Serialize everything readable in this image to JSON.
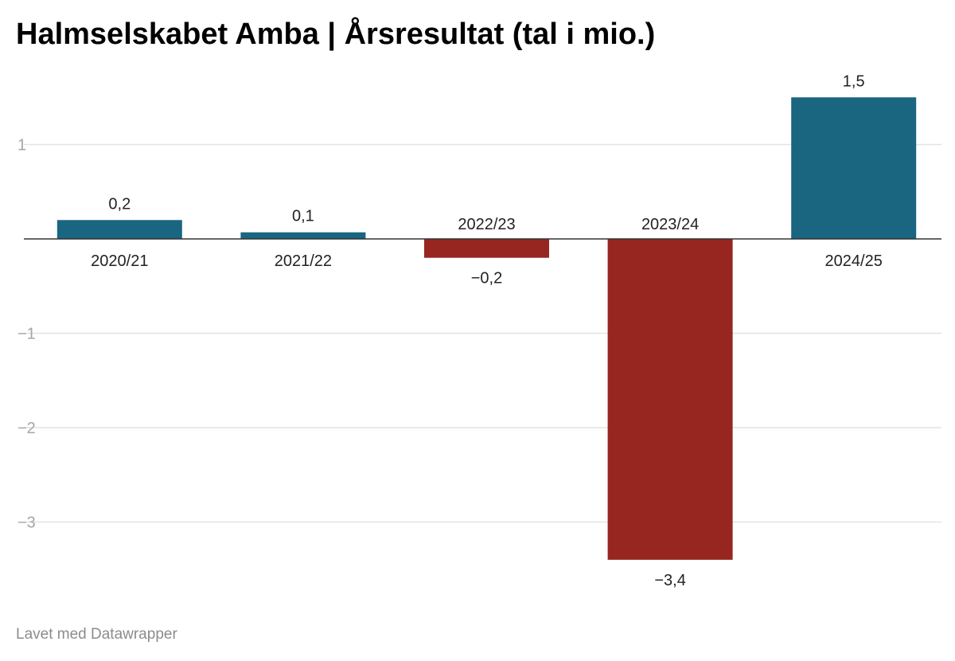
{
  "chart_data": {
    "type": "bar",
    "title": "Halmselskabet Amba | Årsresultat (tal i mio.)",
    "categories": [
      "2020/21",
      "2021/22",
      "2022/23",
      "2023/24",
      "2024/25"
    ],
    "values": [
      0.2,
      0.07,
      -0.2,
      -3.4,
      1.5
    ],
    "value_labels": [
      "0,2",
      "0,1",
      "−0,2",
      "−3,4",
      "1,5"
    ],
    "ylim": [
      -3.6,
      1.6
    ],
    "y_ticks": [
      1,
      -1,
      -2,
      -3
    ],
    "y_tick_labels": [
      "1",
      "−1",
      "−2",
      "−3"
    ],
    "grid": true,
    "colors": {
      "positive": "#1a6580",
      "negative": "#96261f"
    }
  },
  "footer": {
    "text": "Lavet med Datawrapper"
  }
}
